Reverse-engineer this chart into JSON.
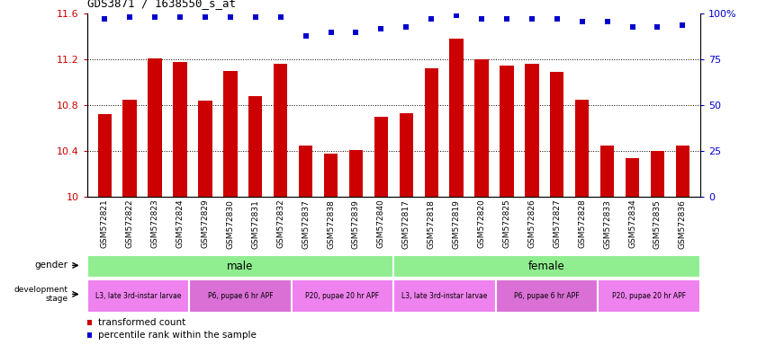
{
  "title": "GDS3871 / 1638550_s_at",
  "samples": [
    "GSM572821",
    "GSM572822",
    "GSM572823",
    "GSM572824",
    "GSM572829",
    "GSM572830",
    "GSM572831",
    "GSM572832",
    "GSM572837",
    "GSM572838",
    "GSM572839",
    "GSM572840",
    "GSM572817",
    "GSM572818",
    "GSM572819",
    "GSM572820",
    "GSM572825",
    "GSM572826",
    "GSM572827",
    "GSM572828",
    "GSM572833",
    "GSM572834",
    "GSM572835",
    "GSM572836"
  ],
  "bar_values": [
    10.72,
    10.85,
    11.21,
    11.18,
    10.84,
    11.1,
    10.88,
    11.16,
    10.45,
    10.38,
    10.41,
    10.7,
    10.73,
    11.12,
    11.38,
    11.2,
    11.15,
    11.16,
    11.09,
    10.85,
    10.45,
    10.34,
    10.4,
    10.45
  ],
  "percentile_values": [
    97,
    98,
    98,
    98,
    98,
    98,
    98,
    98,
    88,
    90,
    90,
    92,
    93,
    97,
    99,
    97,
    97,
    97,
    97,
    96,
    96,
    93,
    93,
    94
  ],
  "bar_color": "#cc0000",
  "percentile_color": "#0000cc",
  "ylim_left": [
    10.0,
    11.6
  ],
  "ylim_right": [
    0,
    100
  ],
  "yticks_left": [
    10.0,
    10.4,
    10.8,
    11.2,
    11.6
  ],
  "yticks_right": [
    0,
    25,
    50,
    75,
    100
  ],
  "ytick_labels_left": [
    "10",
    "10.4",
    "10.8",
    "11.2",
    "11.6"
  ],
  "ytick_labels_right": [
    "0",
    "25",
    "50",
    "75",
    "100%"
  ],
  "grid_values": [
    10.4,
    10.8,
    11.2
  ],
  "gender_row": {
    "male_span": [
      0,
      12
    ],
    "female_span": [
      12,
      24
    ],
    "male_color": "#90ee90",
    "female_color": "#90ee90",
    "label": "gender"
  },
  "dev_stage_row": {
    "segments": [
      {
        "label": "L3, late 3rd-instar larvae",
        "start": 0,
        "end": 4,
        "color": "#ee82ee"
      },
      {
        "label": "P6, pupae 6 hr APF",
        "start": 4,
        "end": 8,
        "color": "#da70d6"
      },
      {
        "label": "P20, pupae 20 hr APF",
        "start": 8,
        "end": 12,
        "color": "#ee82ee"
      },
      {
        "label": "L3, late 3rd-instar larvae",
        "start": 12,
        "end": 16,
        "color": "#ee82ee"
      },
      {
        "label": "P6, pupae 6 hr APF",
        "start": 16,
        "end": 20,
        "color": "#da70d6"
      },
      {
        "label": "P20, pupae 20 hr APF",
        "start": 20,
        "end": 24,
        "color": "#ee82ee"
      }
    ],
    "label": "development stage"
  },
  "legend_items": [
    {
      "color": "#cc0000",
      "label": "transformed count"
    },
    {
      "color": "#0000cc",
      "label": "percentile rank within the sample"
    }
  ],
  "background_color": "#ffffff"
}
